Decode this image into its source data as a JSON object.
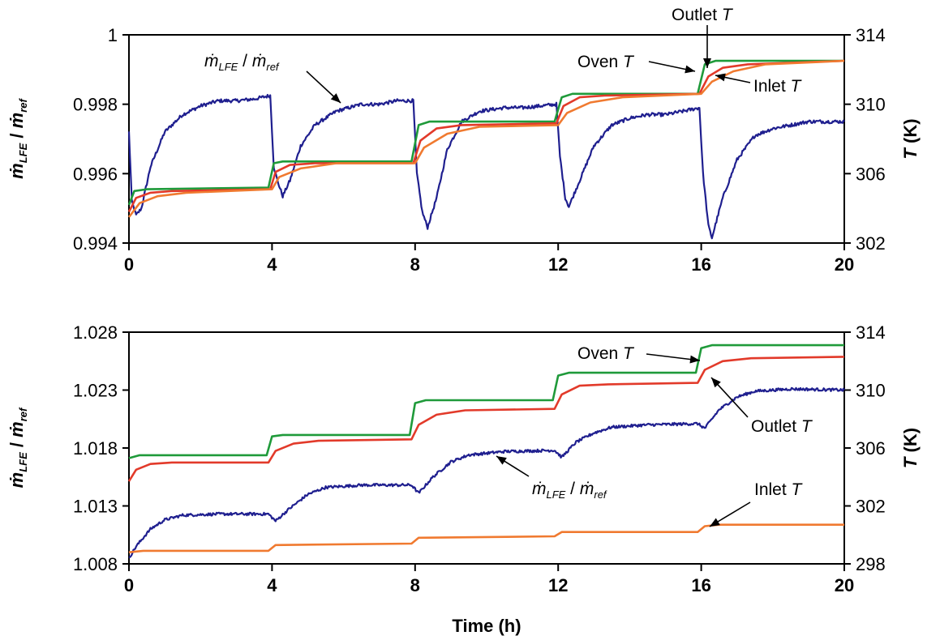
{
  "chart_data": [
    {
      "type": "line",
      "panel": "top",
      "xlabel": "",
      "ylabel_left": "ṁLFE / ṁref",
      "ylabel_right": "T (K)",
      "xlim": [
        0,
        20
      ],
      "ylim_left": [
        0.994,
        1.0
      ],
      "ylim_right": [
        302,
        314
      ],
      "xticks": [
        "0",
        "4",
        "8",
        "12",
        "16",
        "20"
      ],
      "yticks_left": [
        "0.994",
        "0.996",
        "0.998",
        "1"
      ],
      "yticks_right": [
        "302",
        "306",
        "310",
        "314"
      ],
      "colors": {
        "ratio": "#1f1f8f",
        "oven": "#1f9a3a",
        "outlet": "#e23a2a",
        "inlet": "#f07a30"
      },
      "annotations": {
        "ratio": {
          "m1": "ṁ",
          "s1": "LFE",
          "mid": " / ",
          "m2": "ṁ",
          "s2": "ref"
        },
        "oven": {
          "text": "Oven ",
          "it": "T"
        },
        "outlet": {
          "text": "Outlet ",
          "it": "T"
        },
        "inlet": {
          "text": "Inlet ",
          "it": "T"
        }
      },
      "series": [
        {
          "key": "ratio",
          "axis": "left",
          "noise": 5e-05,
          "points": [
            [
              0,
              0.9972
            ],
            [
              0.08,
              0.9952
            ],
            [
              0.2,
              0.9948
            ],
            [
              0.35,
              0.995
            ],
            [
              0.6,
              0.9962
            ],
            [
              1.0,
              0.9972
            ],
            [
              1.5,
              0.9977
            ],
            [
              2.0,
              0.99795
            ],
            [
              2.5,
              0.9981
            ],
            [
              3.0,
              0.9981
            ],
            [
              3.5,
              0.99815
            ],
            [
              3.95,
              0.99825
            ],
            [
              4.05,
              0.9962
            ],
            [
              4.15,
              0.9958
            ],
            [
              4.3,
              0.99535
            ],
            [
              4.5,
              0.9958
            ],
            [
              4.8,
              0.9968
            ],
            [
              5.2,
              0.9974
            ],
            [
              5.8,
              0.9978
            ],
            [
              6.5,
              0.998
            ],
            [
              7.0,
              0.998
            ],
            [
              7.5,
              0.9981
            ],
            [
              7.95,
              0.9981
            ],
            [
              8.05,
              0.996
            ],
            [
              8.2,
              0.9949
            ],
            [
              8.35,
              0.99445
            ],
            [
              8.6,
              0.9953
            ],
            [
              8.9,
              0.9967
            ],
            [
              9.3,
              0.9975
            ],
            [
              9.8,
              0.9978
            ],
            [
              10.5,
              0.9979
            ],
            [
              11.0,
              0.9979
            ],
            [
              11.5,
              0.99795
            ],
            [
              11.95,
              0.998
            ],
            [
              12.05,
              0.9965
            ],
            [
              12.2,
              0.9953
            ],
            [
              12.3,
              0.99505
            ],
            [
              12.6,
              0.9958
            ],
            [
              13.0,
              0.9968
            ],
            [
              13.5,
              0.9974
            ],
            [
              14.0,
              0.9976
            ],
            [
              14.5,
              0.9977
            ],
            [
              15.0,
              0.9977
            ],
            [
              15.5,
              0.9978
            ],
            [
              15.95,
              0.9979
            ],
            [
              16.05,
              0.996
            ],
            [
              16.2,
              0.9945
            ],
            [
              16.3,
              0.99415
            ],
            [
              16.6,
              0.9953
            ],
            [
              17.0,
              0.9964
            ],
            [
              17.5,
              0.9971
            ],
            [
              18.0,
              0.9973
            ],
            [
              19.0,
              0.9975
            ],
            [
              20.0,
              0.9975
            ]
          ]
        },
        {
          "key": "oven",
          "axis": "right",
          "noise": 0,
          "points": [
            [
              0,
              304.2
            ],
            [
              0.15,
              305.0
            ],
            [
              0.5,
              305.1
            ],
            [
              3.9,
              305.2
            ],
            [
              4.05,
              306.6
            ],
            [
              4.3,
              306.7
            ],
            [
              7.9,
              306.7
            ],
            [
              8.1,
              308.8
            ],
            [
              8.4,
              309.0
            ],
            [
              11.9,
              309.0
            ],
            [
              12.1,
              310.4
            ],
            [
              12.4,
              310.6
            ],
            [
              15.9,
              310.6
            ],
            [
              16.1,
              312.3
            ],
            [
              16.4,
              312.5
            ],
            [
              20.0,
              312.5
            ]
          ]
        },
        {
          "key": "outlet",
          "axis": "right",
          "noise": 0,
          "points": [
            [
              0,
              303.8
            ],
            [
              0.2,
              304.6
            ],
            [
              0.6,
              304.9
            ],
            [
              1.2,
              305.0
            ],
            [
              3.95,
              305.1
            ],
            [
              4.1,
              306.1
            ],
            [
              4.5,
              306.5
            ],
            [
              5.2,
              306.6
            ],
            [
              7.95,
              306.6
            ],
            [
              8.15,
              307.9
            ],
            [
              8.6,
              308.6
            ],
            [
              9.3,
              308.8
            ],
            [
              11.95,
              308.9
            ],
            [
              12.15,
              309.9
            ],
            [
              12.6,
              310.4
            ],
            [
              13.3,
              310.5
            ],
            [
              15.95,
              310.6
            ],
            [
              16.2,
              311.6
            ],
            [
              16.6,
              312.1
            ],
            [
              17.3,
              312.3
            ],
            [
              20.0,
              312.5
            ]
          ]
        },
        {
          "key": "inlet",
          "axis": "right",
          "noise": 0,
          "points": [
            [
              0,
              303.5
            ],
            [
              0.3,
              304.3
            ],
            [
              0.8,
              304.7
            ],
            [
              1.6,
              304.9
            ],
            [
              4.0,
              305.1
            ],
            [
              4.2,
              305.8
            ],
            [
              4.8,
              306.3
            ],
            [
              5.8,
              306.6
            ],
            [
              8.0,
              306.6
            ],
            [
              8.25,
              307.5
            ],
            [
              8.9,
              308.3
            ],
            [
              9.8,
              308.7
            ],
            [
              12.0,
              308.8
            ],
            [
              12.25,
              309.5
            ],
            [
              12.9,
              310.1
            ],
            [
              13.8,
              310.4
            ],
            [
              16.0,
              310.6
            ],
            [
              16.3,
              311.3
            ],
            [
              16.9,
              311.9
            ],
            [
              17.8,
              312.3
            ],
            [
              20.0,
              312.5
            ]
          ]
        }
      ]
    },
    {
      "type": "line",
      "panel": "bottom",
      "xlabel": "Time (h)",
      "ylabel_left": "ṁLFE / ṁref",
      "ylabel_right": "T (K)",
      "xlim": [
        0,
        20
      ],
      "ylim_left": [
        1.008,
        1.028
      ],
      "ylim_right": [
        298,
        314
      ],
      "xticks": [
        "0",
        "4",
        "8",
        "12",
        "16",
        "20"
      ],
      "yticks_left": [
        "1.008",
        "1.013",
        "1.018",
        "1.023",
        "1.028"
      ],
      "yticks_right": [
        "298",
        "302",
        "306",
        "310",
        "314"
      ],
      "colors": {
        "ratio": "#1f1f8f",
        "oven": "#1f9a3a",
        "outlet": "#e23a2a",
        "inlet": "#f07a30"
      },
      "annotations": {
        "ratio": {
          "m1": "ṁ",
          "s1": "LFE",
          "mid": " / ",
          "m2": "ṁ",
          "s2": "ref"
        },
        "oven": {
          "text": "Oven ",
          "it": "T"
        },
        "outlet": {
          "text": "Outlet ",
          "it": "T"
        },
        "inlet": {
          "text": "Inlet ",
          "it": "T"
        }
      },
      "series": [
        {
          "key": "ratio",
          "axis": "left",
          "noise": 0.00012,
          "points": [
            [
              0,
              1.0085
            ],
            [
              0.2,
              1.0095
            ],
            [
              0.6,
              1.011
            ],
            [
              1.0,
              1.0118
            ],
            [
              1.5,
              1.0122
            ],
            [
              2.5,
              1.0123
            ],
            [
              3.9,
              1.0123
            ],
            [
              4.1,
              1.0117
            ],
            [
              4.5,
              1.0128
            ],
            [
              5.0,
              1.014
            ],
            [
              5.5,
              1.0146
            ],
            [
              6.5,
              1.0148
            ],
            [
              7.9,
              1.0148
            ],
            [
              8.1,
              1.0141
            ],
            [
              8.5,
              1.0155
            ],
            [
              9.0,
              1.0168
            ],
            [
              9.5,
              1.0174
            ],
            [
              10.5,
              1.0177
            ],
            [
              11.9,
              1.0178
            ],
            [
              12.1,
              1.0172
            ],
            [
              12.5,
              1.0185
            ],
            [
              13.0,
              1.0193
            ],
            [
              13.5,
              1.0198
            ],
            [
              14.5,
              1.02
            ],
            [
              15.9,
              1.0201
            ],
            [
              16.1,
              1.0197
            ],
            [
              16.5,
              1.0213
            ],
            [
              17.0,
              1.0224
            ],
            [
              17.5,
              1.0229
            ],
            [
              18.5,
              1.0231
            ],
            [
              20.0,
              1.023
            ]
          ]
        },
        {
          "key": "oven",
          "axis": "right",
          "noise": 0,
          "points": [
            [
              0,
              305.3
            ],
            [
              0.3,
              305.5
            ],
            [
              3.85,
              305.5
            ],
            [
              4.0,
              306.8
            ],
            [
              4.3,
              306.9
            ],
            [
              7.85,
              306.9
            ],
            [
              8.0,
              309.1
            ],
            [
              8.3,
              309.3
            ],
            [
              11.85,
              309.3
            ],
            [
              12.0,
              311.0
            ],
            [
              12.3,
              311.2
            ],
            [
              15.85,
              311.2
            ],
            [
              16.0,
              312.9
            ],
            [
              16.3,
              313.1
            ],
            [
              20.0,
              313.1
            ]
          ]
        },
        {
          "key": "outlet",
          "axis": "right",
          "noise": 0,
          "points": [
            [
              0,
              303.7
            ],
            [
              0.2,
              304.5
            ],
            [
              0.6,
              304.9
            ],
            [
              1.2,
              305.0
            ],
            [
              3.9,
              305.0
            ],
            [
              4.1,
              305.8
            ],
            [
              4.6,
              306.3
            ],
            [
              5.3,
              306.5
            ],
            [
              7.9,
              306.6
            ],
            [
              8.1,
              307.6
            ],
            [
              8.6,
              308.3
            ],
            [
              9.4,
              308.6
            ],
            [
              11.9,
              308.7
            ],
            [
              12.1,
              309.7
            ],
            [
              12.6,
              310.3
            ],
            [
              13.4,
              310.4
            ],
            [
              15.9,
              310.5
            ],
            [
              16.1,
              311.4
            ],
            [
              16.6,
              312.0
            ],
            [
              17.4,
              312.2
            ],
            [
              20.0,
              312.3
            ]
          ]
        },
        {
          "key": "inlet",
          "axis": "right",
          "noise": 0,
          "points": [
            [
              0,
              298.8
            ],
            [
              0.4,
              298.9
            ],
            [
              3.9,
              298.9
            ],
            [
              4.1,
              299.3
            ],
            [
              7.9,
              299.4
            ],
            [
              8.1,
              299.8
            ],
            [
              11.9,
              299.9
            ],
            [
              12.1,
              300.2
            ],
            [
              15.9,
              300.2
            ],
            [
              16.1,
              300.6
            ],
            [
              16.5,
              300.7
            ],
            [
              20.0,
              300.7
            ]
          ]
        }
      ]
    }
  ]
}
